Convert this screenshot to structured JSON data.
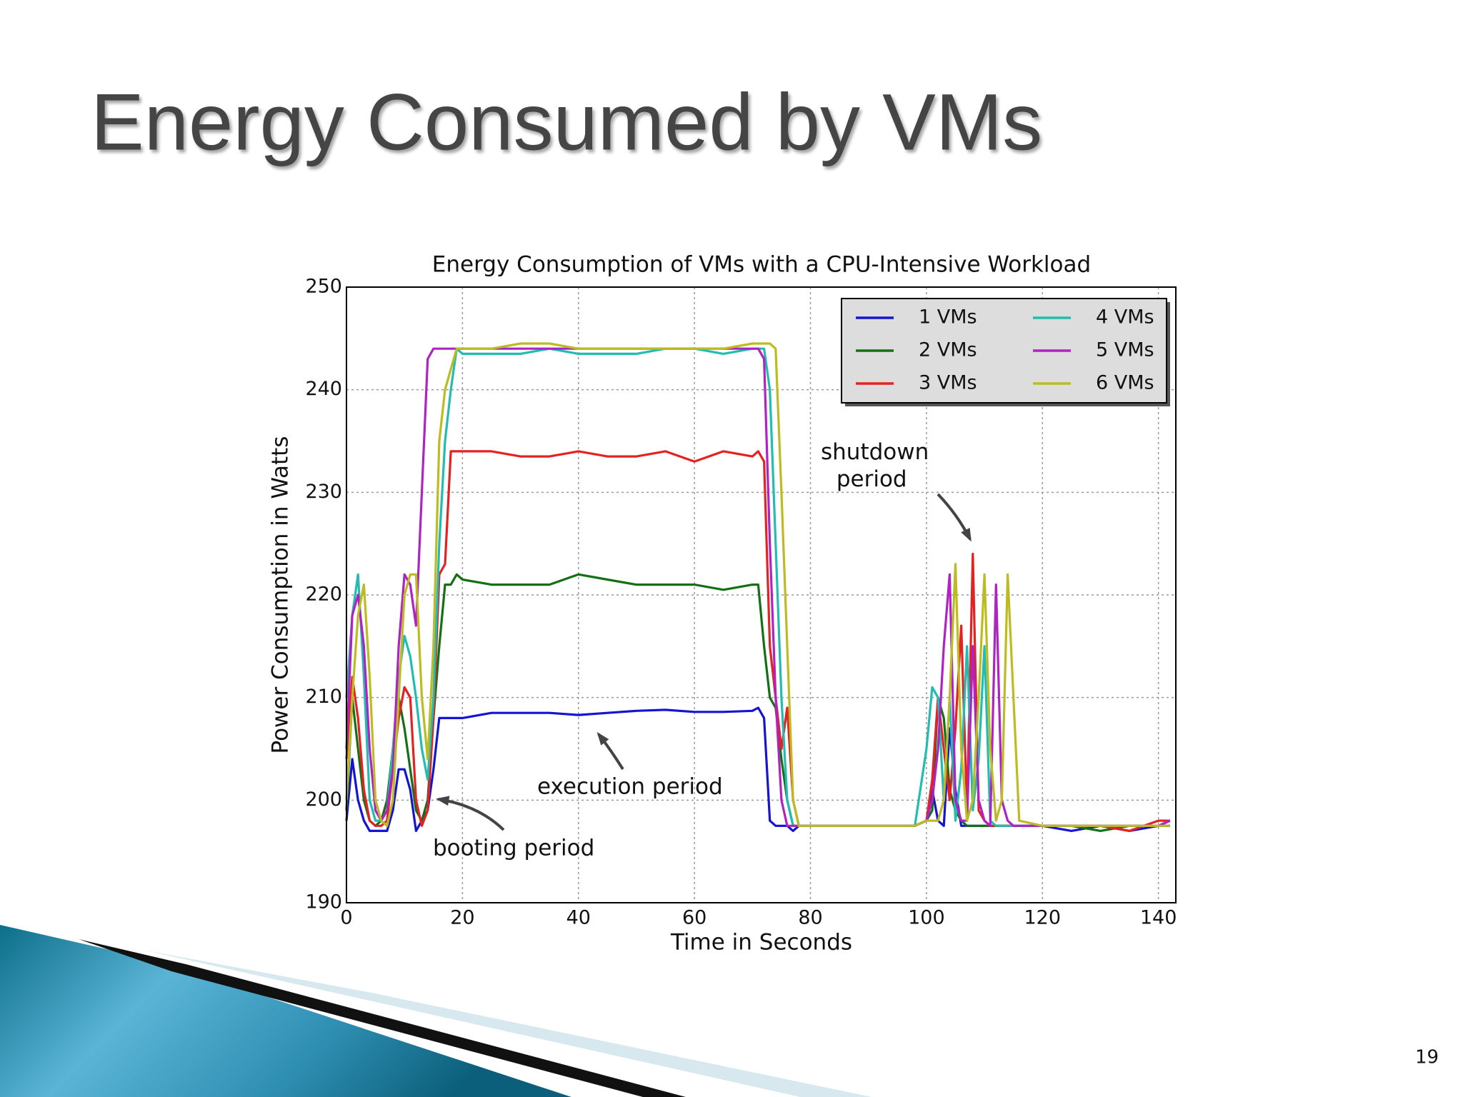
{
  "slide_title": "Energy Consumed by VMs",
  "page_number": "19",
  "chart_data": {
    "type": "line",
    "title": "Energy Consumption of VMs with a CPU-Intensive Workload",
    "xlabel": "Time in Seconds",
    "ylabel": "Power Consumption in Watts",
    "x": [
      0,
      1,
      2,
      3,
      4,
      5,
      6,
      7,
      8,
      9,
      10,
      11,
      12,
      13,
      14,
      15,
      16,
      17,
      18,
      19,
      20,
      25,
      30,
      35,
      40,
      45,
      50,
      55,
      60,
      65,
      70,
      71,
      72,
      73,
      74,
      75,
      76,
      77,
      78,
      80,
      85,
      90,
      95,
      98,
      100,
      101,
      102,
      103,
      104,
      105,
      106,
      107,
      108,
      109,
      110,
      111,
      112,
      113,
      114,
      115,
      116,
      120,
      125,
      130,
      135,
      140,
      142
    ],
    "xlim": [
      0,
      143
    ],
    "xticks": [
      0,
      20,
      40,
      60,
      80,
      100,
      120,
      140
    ],
    "ylim": [
      190,
      250
    ],
    "yticks": [
      190,
      200,
      210,
      220,
      230,
      240,
      250
    ],
    "grid": true,
    "legend": "upper right",
    "series": [
      {
        "name": "1 VMs",
        "color": "#1414d2",
        "values": [
          198,
          204,
          200,
          198,
          197,
          197,
          197,
          197,
          199,
          203,
          203,
          201,
          197,
          198,
          199,
          203,
          208,
          208,
          208,
          208,
          208,
          208.5,
          208.5,
          208.5,
          208.3,
          208.5,
          208.7,
          208.8,
          208.6,
          208.6,
          208.7,
          209,
          208,
          198,
          197.5,
          197.5,
          197.5,
          197,
          197.5,
          197.5,
          197.5,
          197.5,
          197.5,
          197.5,
          198,
          201,
          198,
          197.5,
          207,
          201,
          197.5,
          197.5,
          197.5,
          197.5,
          197.5,
          197.5,
          197.5,
          197.5,
          197.5,
          197.5,
          197.5,
          197.5,
          197,
          197.5,
          197,
          197.5,
          197.5
        ]
      },
      {
        "name": "2 VMs",
        "color": "#137013",
        "values": [
          199,
          210,
          205,
          200,
          198,
          197.5,
          198,
          200,
          205,
          210,
          207,
          203,
          199,
          198,
          200,
          208,
          215,
          221,
          221,
          222,
          221.5,
          221,
          221,
          221,
          222,
          221.5,
          221,
          221,
          221,
          220.5,
          221,
          221,
          215,
          210,
          209,
          204,
          200,
          197.5,
          197.5,
          197.5,
          197.5,
          197.5,
          197.5,
          197.5,
          198,
          199,
          210,
          208,
          201,
          199,
          198,
          197.5,
          197.5,
          197.5,
          197.5,
          197.5,
          197.5,
          197.5,
          197.5,
          197.5,
          197.5,
          197.5,
          197.5,
          197,
          197.5,
          197.5,
          197.5
        ]
      },
      {
        "name": "3 VMs",
        "color": "#e52222",
        "values": [
          204,
          212,
          208,
          201,
          198,
          197.5,
          197.5,
          198,
          203,
          208,
          211,
          210,
          200,
          197.5,
          199,
          208,
          222,
          223,
          234,
          234,
          234,
          234,
          233.5,
          233.5,
          234,
          233.5,
          233.5,
          234,
          233,
          234,
          233.5,
          234,
          233,
          215,
          210,
          205,
          209,
          200,
          197.5,
          197.5,
          197.5,
          197.5,
          197.5,
          197.5,
          198,
          202,
          210,
          205,
          200,
          207,
          217,
          199,
          224,
          199,
          198,
          197.5,
          197.5,
          197.5,
          197.5,
          197.5,
          197.5,
          197.5,
          197.5,
          197.5,
          197,
          198,
          198
        ]
      },
      {
        "name": "4 VMs",
        "color": "#22bcb0",
        "values": [
          210,
          218,
          222,
          212,
          200,
          198,
          198,
          199,
          205,
          212,
          216,
          214,
          210,
          205,
          202,
          210,
          225,
          235,
          240,
          244,
          243.5,
          243.5,
          243.5,
          244,
          243.5,
          243.5,
          243.5,
          244,
          244,
          243.5,
          244,
          244,
          244,
          240,
          225,
          210,
          200,
          197.5,
          197.5,
          197.5,
          197.5,
          197.5,
          197.5,
          197.5,
          205,
          211,
          210,
          200,
          210,
          198,
          203,
          215,
          199,
          204,
          215,
          198,
          197.5,
          197.5,
          197.5,
          197.5,
          197.5,
          197.5,
          197.5,
          197.5,
          197.5,
          197.5,
          198
        ]
      },
      {
        "name": "5 VMs",
        "color": "#b022c4",
        "values": [
          205,
          218,
          220,
          215,
          205,
          199,
          198,
          199,
          203,
          215,
          222,
          221,
          217,
          230,
          243,
          244,
          244,
          244,
          244,
          244,
          244,
          244,
          244,
          244,
          244,
          244,
          244,
          244,
          244,
          244,
          244,
          244,
          243,
          225,
          210,
          200,
          197.5,
          197.5,
          197.5,
          197.5,
          197.5,
          197.5,
          197.5,
          197.5,
          198,
          200,
          205,
          215,
          222,
          200,
          198,
          198,
          215,
          200,
          198,
          197.5,
          221,
          200,
          198,
          197.5,
          197.5,
          197.5,
          197.5,
          197.5,
          197.5,
          197.5,
          198
        ]
      },
      {
        "name": "6 VMs",
        "color": "#bcbc22",
        "values": [
          200,
          210,
          218,
          221,
          212,
          200,
          198,
          197.5,
          200,
          210,
          220,
          222,
          222,
          210,
          204,
          215,
          235,
          240,
          242,
          244,
          244,
          244,
          244.5,
          244.5,
          244,
          244,
          244,
          244,
          244,
          244,
          244.5,
          244.5,
          244.5,
          244.5,
          244,
          230,
          215,
          200,
          197.5,
          197.5,
          197.5,
          197.5,
          197.5,
          197.5,
          198,
          198,
          198,
          200,
          210,
          223,
          205,
          198,
          200,
          210,
          222,
          205,
          198,
          200,
          222,
          210,
          198,
          197.5,
          197.5,
          197.5,
          197.5,
          197.5,
          197.5
        ]
      }
    ],
    "annotations": [
      "shutdown period",
      "execution period",
      "booting period"
    ]
  }
}
